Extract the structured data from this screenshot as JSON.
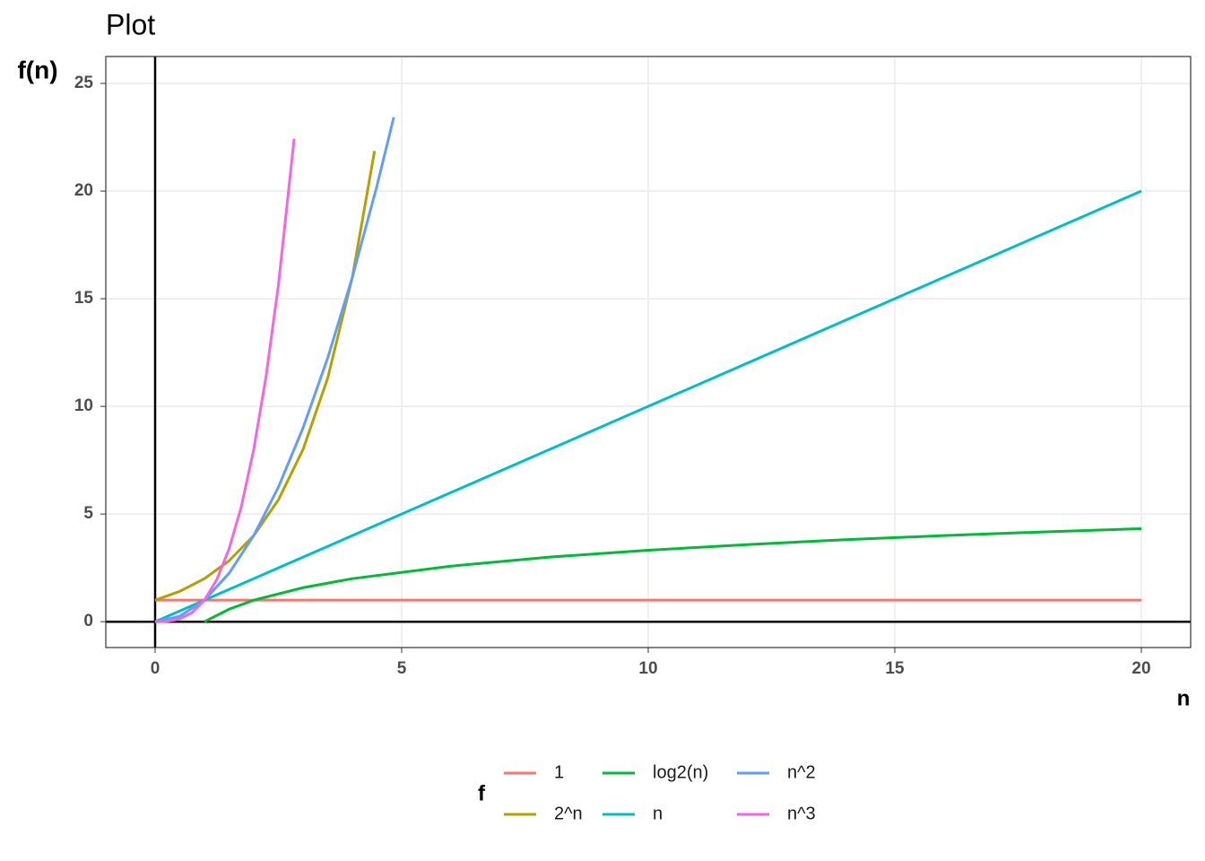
{
  "chart_data": {
    "type": "line",
    "title": "Plot",
    "x_label": "n",
    "y_label": "f(n)",
    "xlim": [
      -1,
      21
    ],
    "ylim": [
      -1.2,
      26.25
    ],
    "xticks": [
      0,
      5,
      10,
      15,
      20
    ],
    "yticks": [
      0,
      5,
      10,
      15,
      20,
      25
    ],
    "grid": true,
    "hline": 0,
    "vline": 0,
    "legend_title": "f",
    "legend_position": "bottom",
    "series": [
      {
        "name": "1",
        "color": "#F8766D",
        "x": [
          0,
          20
        ],
        "values": [
          1,
          1
        ]
      },
      {
        "name": "2^n",
        "color": "#B79F00",
        "x": [
          0,
          0.5,
          1,
          1.5,
          2,
          2.5,
          3,
          3.5,
          4,
          4.45
        ],
        "values": [
          1,
          1.41,
          2,
          2.83,
          4,
          5.66,
          8,
          11.31,
          16,
          21.86
        ]
      },
      {
        "name": "log2(n)",
        "color": "#00BA38",
        "x": [
          1,
          1.5,
          2,
          3,
          4,
          6,
          8,
          10,
          12,
          14,
          16,
          18,
          20
        ],
        "values": [
          0,
          0.58,
          1,
          1.58,
          2,
          2.58,
          3,
          3.32,
          3.58,
          3.81,
          4,
          4.17,
          4.32
        ]
      },
      {
        "name": "n",
        "color": "#00BFC4",
        "x": [
          0,
          20
        ],
        "values": [
          0,
          20
        ]
      },
      {
        "name": "n^2",
        "color": "#619CFF",
        "x": [
          0,
          0.5,
          1,
          1.5,
          2,
          2.5,
          3,
          3.5,
          4,
          4.5,
          4.84
        ],
        "values": [
          0,
          0.25,
          1,
          2.25,
          4,
          6.25,
          9,
          12.25,
          16,
          20.25,
          23.43
        ]
      },
      {
        "name": "n^3",
        "color": "#F564E3",
        "x": [
          0,
          0.25,
          0.5,
          0.75,
          1,
          1.25,
          1.5,
          1.75,
          2,
          2.25,
          2.5,
          2.82
        ],
        "values": [
          0,
          0.02,
          0.13,
          0.42,
          1,
          1.95,
          3.38,
          5.36,
          8,
          11.39,
          15.63,
          22.43
        ]
      }
    ]
  }
}
